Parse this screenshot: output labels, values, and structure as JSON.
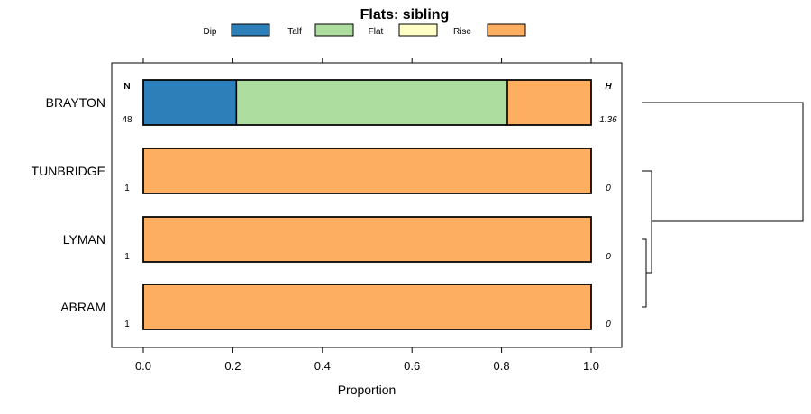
{
  "chart_data": {
    "type": "bar",
    "orientation": "horizontal",
    "stacked": true,
    "title": "Flats: sibling",
    "xlabel": "Proportion",
    "ylabel": "",
    "xlim": [
      -0.07,
      1.07
    ],
    "xticks": [
      "0.0",
      "0.2",
      "0.4",
      "0.6",
      "0.8",
      "1.0"
    ],
    "legend_position": "top",
    "categories": [
      "BRAYTON",
      "TUNBRIDGE",
      "LYMAN",
      "ABRAM"
    ],
    "series": [
      {
        "name": "Dip",
        "color": "#2c7fb8",
        "values": [
          0.208,
          0,
          0,
          0
        ]
      },
      {
        "name": "Talf",
        "color": "#addd9f",
        "values": [
          0.605,
          0,
          0,
          0
        ]
      },
      {
        "name": "Flat",
        "color": "#ffffc6",
        "values": [
          0,
          0,
          0,
          0
        ]
      },
      {
        "name": "Rise",
        "color": "#fdae61",
        "values": [
          0.187,
          1,
          1,
          1
        ]
      }
    ],
    "n_label": "N",
    "h_label": "H",
    "n_values": [
      "48",
      "1",
      "1",
      "1"
    ],
    "h_values": [
      "1.36",
      "0",
      "0",
      "0"
    ],
    "dendrogram": "present"
  }
}
